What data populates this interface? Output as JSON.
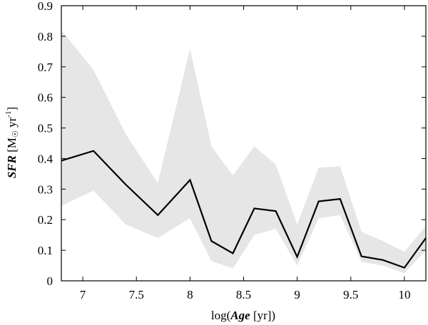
{
  "chart_data": {
    "type": "line",
    "title": "",
    "xlabel_prefix": "log(",
    "xlabel_var": "Age",
    "xlabel_suffix": " [yr])",
    "ylabel_var": "SFR",
    "ylabel_unit_open": " [M",
    "ylabel_sun": "☉",
    "ylabel_unit_mid": " yr",
    "ylabel_sup": "-1",
    "ylabel_unit_close": "]",
    "xlim": [
      6.8,
      10.2
    ],
    "ylim": [
      0,
      0.9
    ],
    "xticks": [
      7,
      7.5,
      8,
      8.5,
      9,
      9.5,
      10
    ],
    "xtick_labels": [
      "7",
      "7.5",
      "8",
      "8.5",
      "9",
      "9.5",
      "10"
    ],
    "yticks": [
      0,
      0.1,
      0.2,
      0.3,
      0.4,
      0.5,
      0.6,
      0.7,
      0.8,
      0.9
    ],
    "ytick_labels": [
      "0",
      "0.1",
      "0.2",
      "0.3",
      "0.4",
      "0.5",
      "0.6",
      "0.7",
      "0.8",
      "0.9"
    ],
    "grid": false,
    "band_color": "#e6e6e6",
    "line_color": "#000000",
    "x": [
      6.8,
      7.1,
      7.4,
      7.7,
      8.0,
      8.2,
      8.4,
      8.6,
      8.8,
      9.0,
      9.2,
      9.4,
      9.6,
      9.8,
      10.0,
      10.2
    ],
    "series": [
      {
        "values": [
          0.393,
          0.425,
          0.315,
          0.215,
          0.33,
          0.13,
          0.09,
          0.237,
          0.228,
          0.078,
          0.26,
          0.268,
          0.08,
          0.068,
          0.043,
          0.14
        ]
      }
    ],
    "band_upper": [
      0.82,
      0.69,
      0.48,
      0.32,
      0.76,
      0.44,
      0.345,
      0.44,
      0.38,
      0.185,
      0.37,
      0.375,
      0.16,
      0.13,
      0.095,
      0.18
    ],
    "band_lower": [
      0.245,
      0.295,
      0.185,
      0.14,
      0.205,
      0.065,
      0.04,
      0.15,
      0.17,
      0.05,
      0.205,
      0.215,
      0.062,
      0.05,
      0.025,
      0.1
    ]
  }
}
